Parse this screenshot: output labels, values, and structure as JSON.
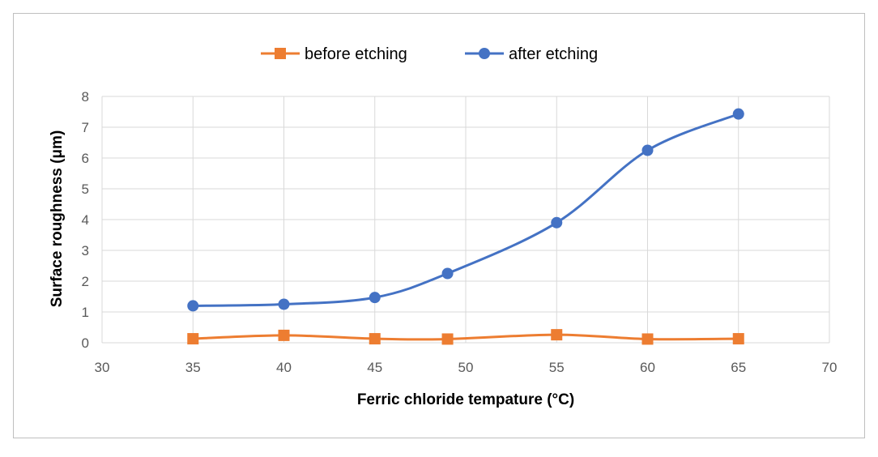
{
  "chart_data": {
    "type": "line",
    "xlabel": "Ferric chloride tempature (°C)",
    "ylabel": "Surface roughness (μm)",
    "xlim": [
      30,
      70
    ],
    "ylim": [
      0,
      8
    ],
    "xticks": [
      30,
      35,
      40,
      45,
      50,
      55,
      60,
      65,
      70
    ],
    "yticks": [
      0,
      1,
      2,
      3,
      4,
      5,
      6,
      7,
      8
    ],
    "grid": true,
    "legend_position": "top",
    "smooth": true,
    "series": [
      {
        "name": "before etching",
        "color": "#ed7d31",
        "marker": "square",
        "x": [
          35,
          40,
          45,
          49,
          55,
          60,
          65
        ],
        "y": [
          0.13,
          0.24,
          0.13,
          0.12,
          0.26,
          0.12,
          0.13
        ]
      },
      {
        "name": "after etching",
        "color": "#4472c4",
        "marker": "circle",
        "x": [
          35,
          40,
          45,
          49,
          55,
          60,
          65
        ],
        "y": [
          1.2,
          1.25,
          1.47,
          2.25,
          3.9,
          6.25,
          7.43
        ]
      }
    ]
  }
}
